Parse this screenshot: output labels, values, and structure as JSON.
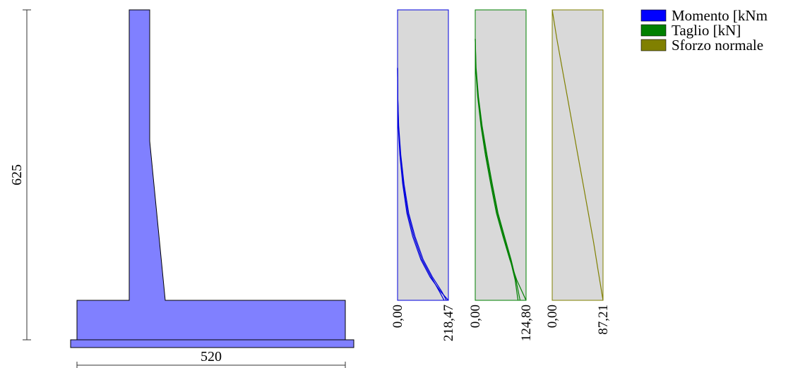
{
  "colors": {
    "wall_fill": "#8080ff",
    "panel_bg": "#d9d9d9",
    "momento": "#0000dd",
    "taglio": "#008000",
    "sforzo": "#808000",
    "dim_line": "#333333"
  },
  "dimensions": {
    "height_label": "625",
    "width_label": "520"
  },
  "legend": {
    "items": [
      {
        "label": "Momento [kNm",
        "color": "#0000ff"
      },
      {
        "label": "Taglio [kN]",
        "color": "#008000"
      },
      {
        "label": "Sforzo normale",
        "color": "#808000"
      }
    ]
  },
  "chart_data": [
    {
      "type": "line",
      "title": "",
      "series_label": "Momento [kNm",
      "x_range": [
        0.0,
        218.47
      ],
      "x_tick_labels": [
        "0,00",
        "218,47"
      ],
      "y_direction": "depth from top (0 to 1 of wall height)",
      "series": [
        {
          "x": [
            0,
            0.5,
            3,
            10,
            22,
            40,
            65,
            100,
            140,
            185,
            218.47
          ],
          "y": [
            0.2,
            0.3,
            0.4,
            0.5,
            0.6,
            0.7,
            0.78,
            0.86,
            0.92,
            0.97,
            1.0
          ]
        },
        {
          "x": [
            0,
            1,
            5,
            14,
            28,
            48,
            75,
            110,
            150,
            190,
            210
          ],
          "y": [
            0.2,
            0.3,
            0.4,
            0.5,
            0.6,
            0.7,
            0.78,
            0.86,
            0.92,
            0.97,
            1.0
          ]
        },
        {
          "x": [
            0,
            0.8,
            4,
            12,
            25,
            44,
            70,
            105,
            145,
            180,
            200
          ],
          "y": [
            0.2,
            0.3,
            0.4,
            0.5,
            0.6,
            0.7,
            0.78,
            0.86,
            0.92,
            0.97,
            1.0
          ]
        }
      ]
    },
    {
      "type": "line",
      "title": "",
      "series_label": "Taglio [kN]",
      "x_range": [
        0.0,
        124.8
      ],
      "x_tick_labels": [
        "0,00",
        "124,80"
      ],
      "y_direction": "depth from top (0 to 1 of wall height)",
      "series": [
        {
          "x": [
            0,
            1,
            6,
            14,
            25,
            38,
            52,
            68,
            85,
            102,
            124.8
          ],
          "y": [
            0.1,
            0.2,
            0.3,
            0.4,
            0.5,
            0.6,
            0.7,
            0.78,
            0.86,
            0.93,
            1.0
          ]
        },
        {
          "x": [
            0,
            2,
            8,
            17,
            29,
            42,
            56,
            72,
            88,
            100,
            110
          ],
          "y": [
            0.1,
            0.2,
            0.3,
            0.4,
            0.5,
            0.6,
            0.7,
            0.78,
            0.86,
            0.93,
            1.0
          ]
        },
        {
          "x": [
            0,
            1.5,
            7,
            15,
            27,
            40,
            54,
            70,
            86,
            98,
            105
          ],
          "y": [
            0.1,
            0.2,
            0.3,
            0.4,
            0.5,
            0.6,
            0.7,
            0.78,
            0.86,
            0.93,
            1.0
          ]
        }
      ]
    },
    {
      "type": "line",
      "title": "",
      "series_label": "Sforzo normale",
      "x_range": [
        0.0,
        87.21
      ],
      "x_tick_labels": [
        "0,00",
        "87,21"
      ],
      "y_direction": "depth from top (0 to 1 of wall height)",
      "series": [
        {
          "x": [
            0,
            8,
            17,
            26,
            35,
            44,
            53,
            62,
            71,
            79,
            87.21
          ],
          "y": [
            0.0,
            0.1,
            0.2,
            0.3,
            0.4,
            0.5,
            0.6,
            0.7,
            0.8,
            0.9,
            1.0
          ]
        }
      ]
    }
  ]
}
